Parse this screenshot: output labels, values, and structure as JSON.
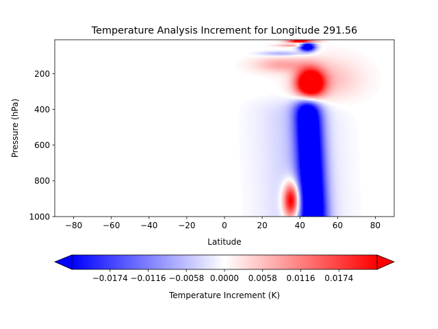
{
  "chart_data": {
    "type": "heatmap",
    "title": "Temperature Analysis Increment for Longitude 291.56",
    "xlabel": "Latitude",
    "ylabel": "Pressure (hPa)",
    "xlim": [
      -90,
      90
    ],
    "ylim": [
      1000,
      10
    ],
    "y_inverted": true,
    "x_ticks": [
      -80,
      -60,
      -40,
      -20,
      0,
      20,
      40,
      60,
      80
    ],
    "y_ticks": [
      200,
      400,
      600,
      800,
      1000
    ],
    "colormap": "bwr",
    "colormap_colors": {
      "min": "#0000ff",
      "mid": "#ffffff",
      "max": "#ff0000"
    },
    "colorbar": {
      "label": "Temperature Increment (K)",
      "orientation": "horizontal",
      "extend": "both",
      "range": [
        -0.0232,
        0.0232
      ],
      "ticks": [
        "-0.0174",
        "-0.0116",
        "-0.0058",
        "0.0000",
        "0.0058",
        "0.0116",
        "0.0174"
      ],
      "tick_values": [
        -0.0174,
        -0.0116,
        -0.0058,
        0.0,
        0.0058,
        0.0116,
        0.0174
      ]
    },
    "features": [
      {
        "name": "upper-positive-core",
        "lat": 45,
        "pressure": 250,
        "value": 0.022
      },
      {
        "name": "mid-lower-negative-column",
        "lat_range": [
          38,
          52
        ],
        "pressure_range": [
          350,
          1000
        ],
        "value": -0.023
      },
      {
        "name": "lower-positive-lobe",
        "lat": 36,
        "pressure": 900,
        "value": 0.02
      },
      {
        "name": "stratospheric-dipole",
        "lat": 42,
        "pressure_range": [
          10,
          120
        ],
        "values": [
          0.023,
          -0.023
        ]
      }
    ]
  }
}
